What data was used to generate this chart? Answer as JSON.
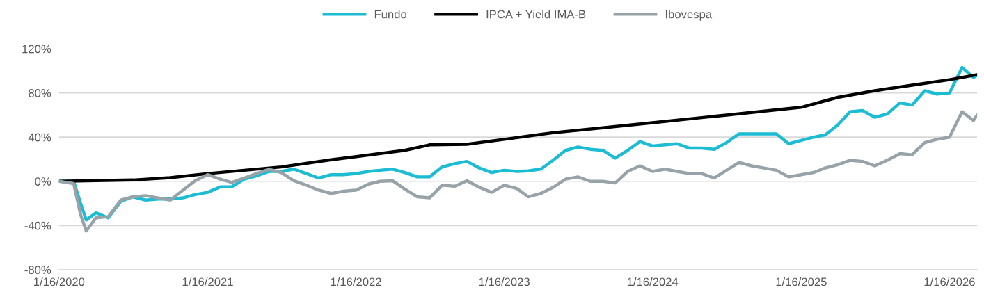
{
  "chart_data": {
    "type": "line",
    "legend": "top",
    "grid": "y",
    "line_style": "solid",
    "marker": "none",
    "xlim": [
      "2020-01-16",
      "2026-03-25"
    ],
    "xticks": [
      {
        "value": "2020-01-16",
        "label": "1/16/2020"
      },
      {
        "value": "2021-01-16",
        "label": "1/16/2021"
      },
      {
        "value": "2022-01-16",
        "label": "1/16/2022"
      },
      {
        "value": "2023-01-16",
        "label": "1/16/2023"
      },
      {
        "value": "2024-01-16",
        "label": "1/16/2024"
      },
      {
        "value": "2025-01-16",
        "label": "1/16/2025"
      },
      {
        "value": "2026-01-16",
        "label": "1/16/2026"
      }
    ],
    "ylim": [
      -80,
      120
    ],
    "yticks": [
      {
        "value": -80,
        "label": "-80%"
      },
      {
        "value": -40,
        "label": "-40%"
      },
      {
        "value": 0,
        "label": "0%"
      },
      {
        "value": 40,
        "label": "40%"
      },
      {
        "value": 80,
        "label": "80%"
      },
      {
        "value": 120,
        "label": "120%"
      }
    ],
    "series": [
      {
        "name": "Fundo",
        "color": "#1bbcd4",
        "x": [
          "2020-01-16",
          "2020-02-21",
          "2020-03-09",
          "2020-03-23",
          "2020-04-16",
          "2020-05-16",
          "2020-06-16",
          "2020-07-16",
          "2020-08-16",
          "2020-09-16",
          "2020-10-16",
          "2020-11-16",
          "2020-12-16",
          "2021-01-16",
          "2021-02-16",
          "2021-03-16",
          "2021-04-16",
          "2021-05-16",
          "2021-06-16",
          "2021-07-16",
          "2021-08-16",
          "2021-09-16",
          "2021-10-16",
          "2021-11-16",
          "2021-12-16",
          "2022-01-16",
          "2022-02-16",
          "2022-03-16",
          "2022-04-16",
          "2022-05-16",
          "2022-06-16",
          "2022-07-16",
          "2022-08-16",
          "2022-09-16",
          "2022-10-16",
          "2022-11-16",
          "2022-12-16",
          "2023-01-16",
          "2023-02-16",
          "2023-03-16",
          "2023-04-16",
          "2023-05-16",
          "2023-06-16",
          "2023-07-16",
          "2023-08-16",
          "2023-09-16",
          "2023-10-16",
          "2023-11-16",
          "2023-12-16",
          "2024-01-16",
          "2024-02-16",
          "2024-03-16",
          "2024-04-16",
          "2024-05-16",
          "2024-06-16",
          "2024-07-16",
          "2024-08-16",
          "2024-09-16",
          "2024-10-16",
          "2024-11-16",
          "2024-12-16",
          "2025-01-16",
          "2025-02-16",
          "2025-03-16",
          "2025-04-16",
          "2025-05-16",
          "2025-06-16",
          "2025-07-16",
          "2025-08-16",
          "2025-09-16",
          "2025-10-16",
          "2025-11-16",
          "2025-12-16",
          "2026-01-16",
          "2026-02-16",
          "2026-03-16",
          "2026-03-25"
        ],
        "values": [
          0,
          0,
          -20,
          -35,
          -28.5,
          -33,
          -18,
          -14,
          -17,
          -16,
          -16,
          -15,
          -12,
          -10,
          -5,
          -5,
          2,
          5,
          9,
          9,
          11,
          7,
          3,
          6,
          6,
          7,
          9,
          10,
          11,
          8,
          4,
          4,
          13,
          16,
          18,
          12,
          8,
          10,
          9,
          9.5,
          11,
          19,
          28,
          31,
          29,
          28,
          21,
          28,
          36,
          32,
          33,
          34,
          30,
          30,
          29,
          35,
          43,
          43,
          43,
          43,
          34,
          37,
          40,
          42,
          51,
          63,
          64,
          58,
          61,
          71,
          69,
          82,
          79,
          80,
          103,
          94,
          96
        ]
      },
      {
        "name": "IPCA + Yield IMA-B",
        "color": "#000000",
        "x": [
          "2020-01-16",
          "2020-07-16",
          "2020-10-16",
          "2021-01-16",
          "2021-04-16",
          "2021-07-16",
          "2021-11-16",
          "2022-05-16",
          "2022-07-16",
          "2022-10-16",
          "2023-01-16",
          "2023-05-16",
          "2023-09-16",
          "2024-01-16",
          "2024-07-16",
          "2025-01-16",
          "2025-04-16",
          "2025-07-16",
          "2025-10-16",
          "2026-01-16",
          "2026-03-25"
        ],
        "values": [
          0,
          1.2,
          3.3,
          7,
          10,
          13,
          19.5,
          28,
          33,
          33.5,
          38,
          44,
          48.5,
          53,
          60,
          67,
          76,
          82,
          87,
          92,
          96.5
        ]
      },
      {
        "name": "Ibovespa",
        "color": "#97a3a8",
        "x": [
          "2020-01-16",
          "2020-02-21",
          "2020-03-09",
          "2020-03-23",
          "2020-04-16",
          "2020-05-16",
          "2020-06-16",
          "2020-07-16",
          "2020-08-16",
          "2020-09-16",
          "2020-10-16",
          "2020-11-16",
          "2020-12-16",
          "2021-01-16",
          "2021-02-16",
          "2021-03-16",
          "2021-04-16",
          "2021-05-16",
          "2021-06-16",
          "2021-07-16",
          "2021-08-16",
          "2021-09-16",
          "2021-10-16",
          "2021-11-16",
          "2021-12-16",
          "2022-01-16",
          "2022-02-16",
          "2022-03-16",
          "2022-04-16",
          "2022-05-16",
          "2022-06-16",
          "2022-07-16",
          "2022-08-16",
          "2022-09-16",
          "2022-10-16",
          "2022-11-16",
          "2022-12-16",
          "2023-01-16",
          "2023-02-16",
          "2023-03-16",
          "2023-04-16",
          "2023-05-16",
          "2023-06-16",
          "2023-07-16",
          "2023-08-16",
          "2023-09-16",
          "2023-10-16",
          "2023-11-16",
          "2023-12-16",
          "2024-01-16",
          "2024-02-16",
          "2024-03-16",
          "2024-04-16",
          "2024-05-16",
          "2024-06-16",
          "2024-07-16",
          "2024-08-16",
          "2024-09-16",
          "2024-10-16",
          "2024-11-16",
          "2024-12-16",
          "2025-01-16",
          "2025-02-16",
          "2025-03-16",
          "2025-04-16",
          "2025-05-16",
          "2025-06-16",
          "2025-07-16",
          "2025-08-16",
          "2025-09-16",
          "2025-10-16",
          "2025-11-16",
          "2025-12-16",
          "2026-01-16",
          "2026-02-16",
          "2026-03-16",
          "2026-03-25"
        ],
        "values": [
          0,
          -2,
          -30,
          -45,
          -33,
          -32,
          -17,
          -14,
          -13,
          -15,
          -17,
          -8,
          0.5,
          6,
          2,
          -1,
          3,
          7,
          11,
          8,
          0.5,
          -3.5,
          -8,
          -11,
          -9,
          -8,
          -2.5,
          0,
          0.5,
          -7,
          -14,
          -15,
          -3.5,
          -4.5,
          0.5,
          -5.5,
          -10,
          -3.5,
          -6.5,
          -14,
          -11,
          -5.5,
          2,
          4,
          0,
          0,
          -1.5,
          9,
          14,
          9,
          11,
          9,
          7,
          7,
          3,
          10,
          17,
          14,
          12,
          10,
          4,
          6,
          8,
          12,
          15,
          19,
          18,
          14,
          19,
          25,
          24,
          35,
          38,
          40,
          63,
          55,
          60
        ]
      }
    ]
  }
}
